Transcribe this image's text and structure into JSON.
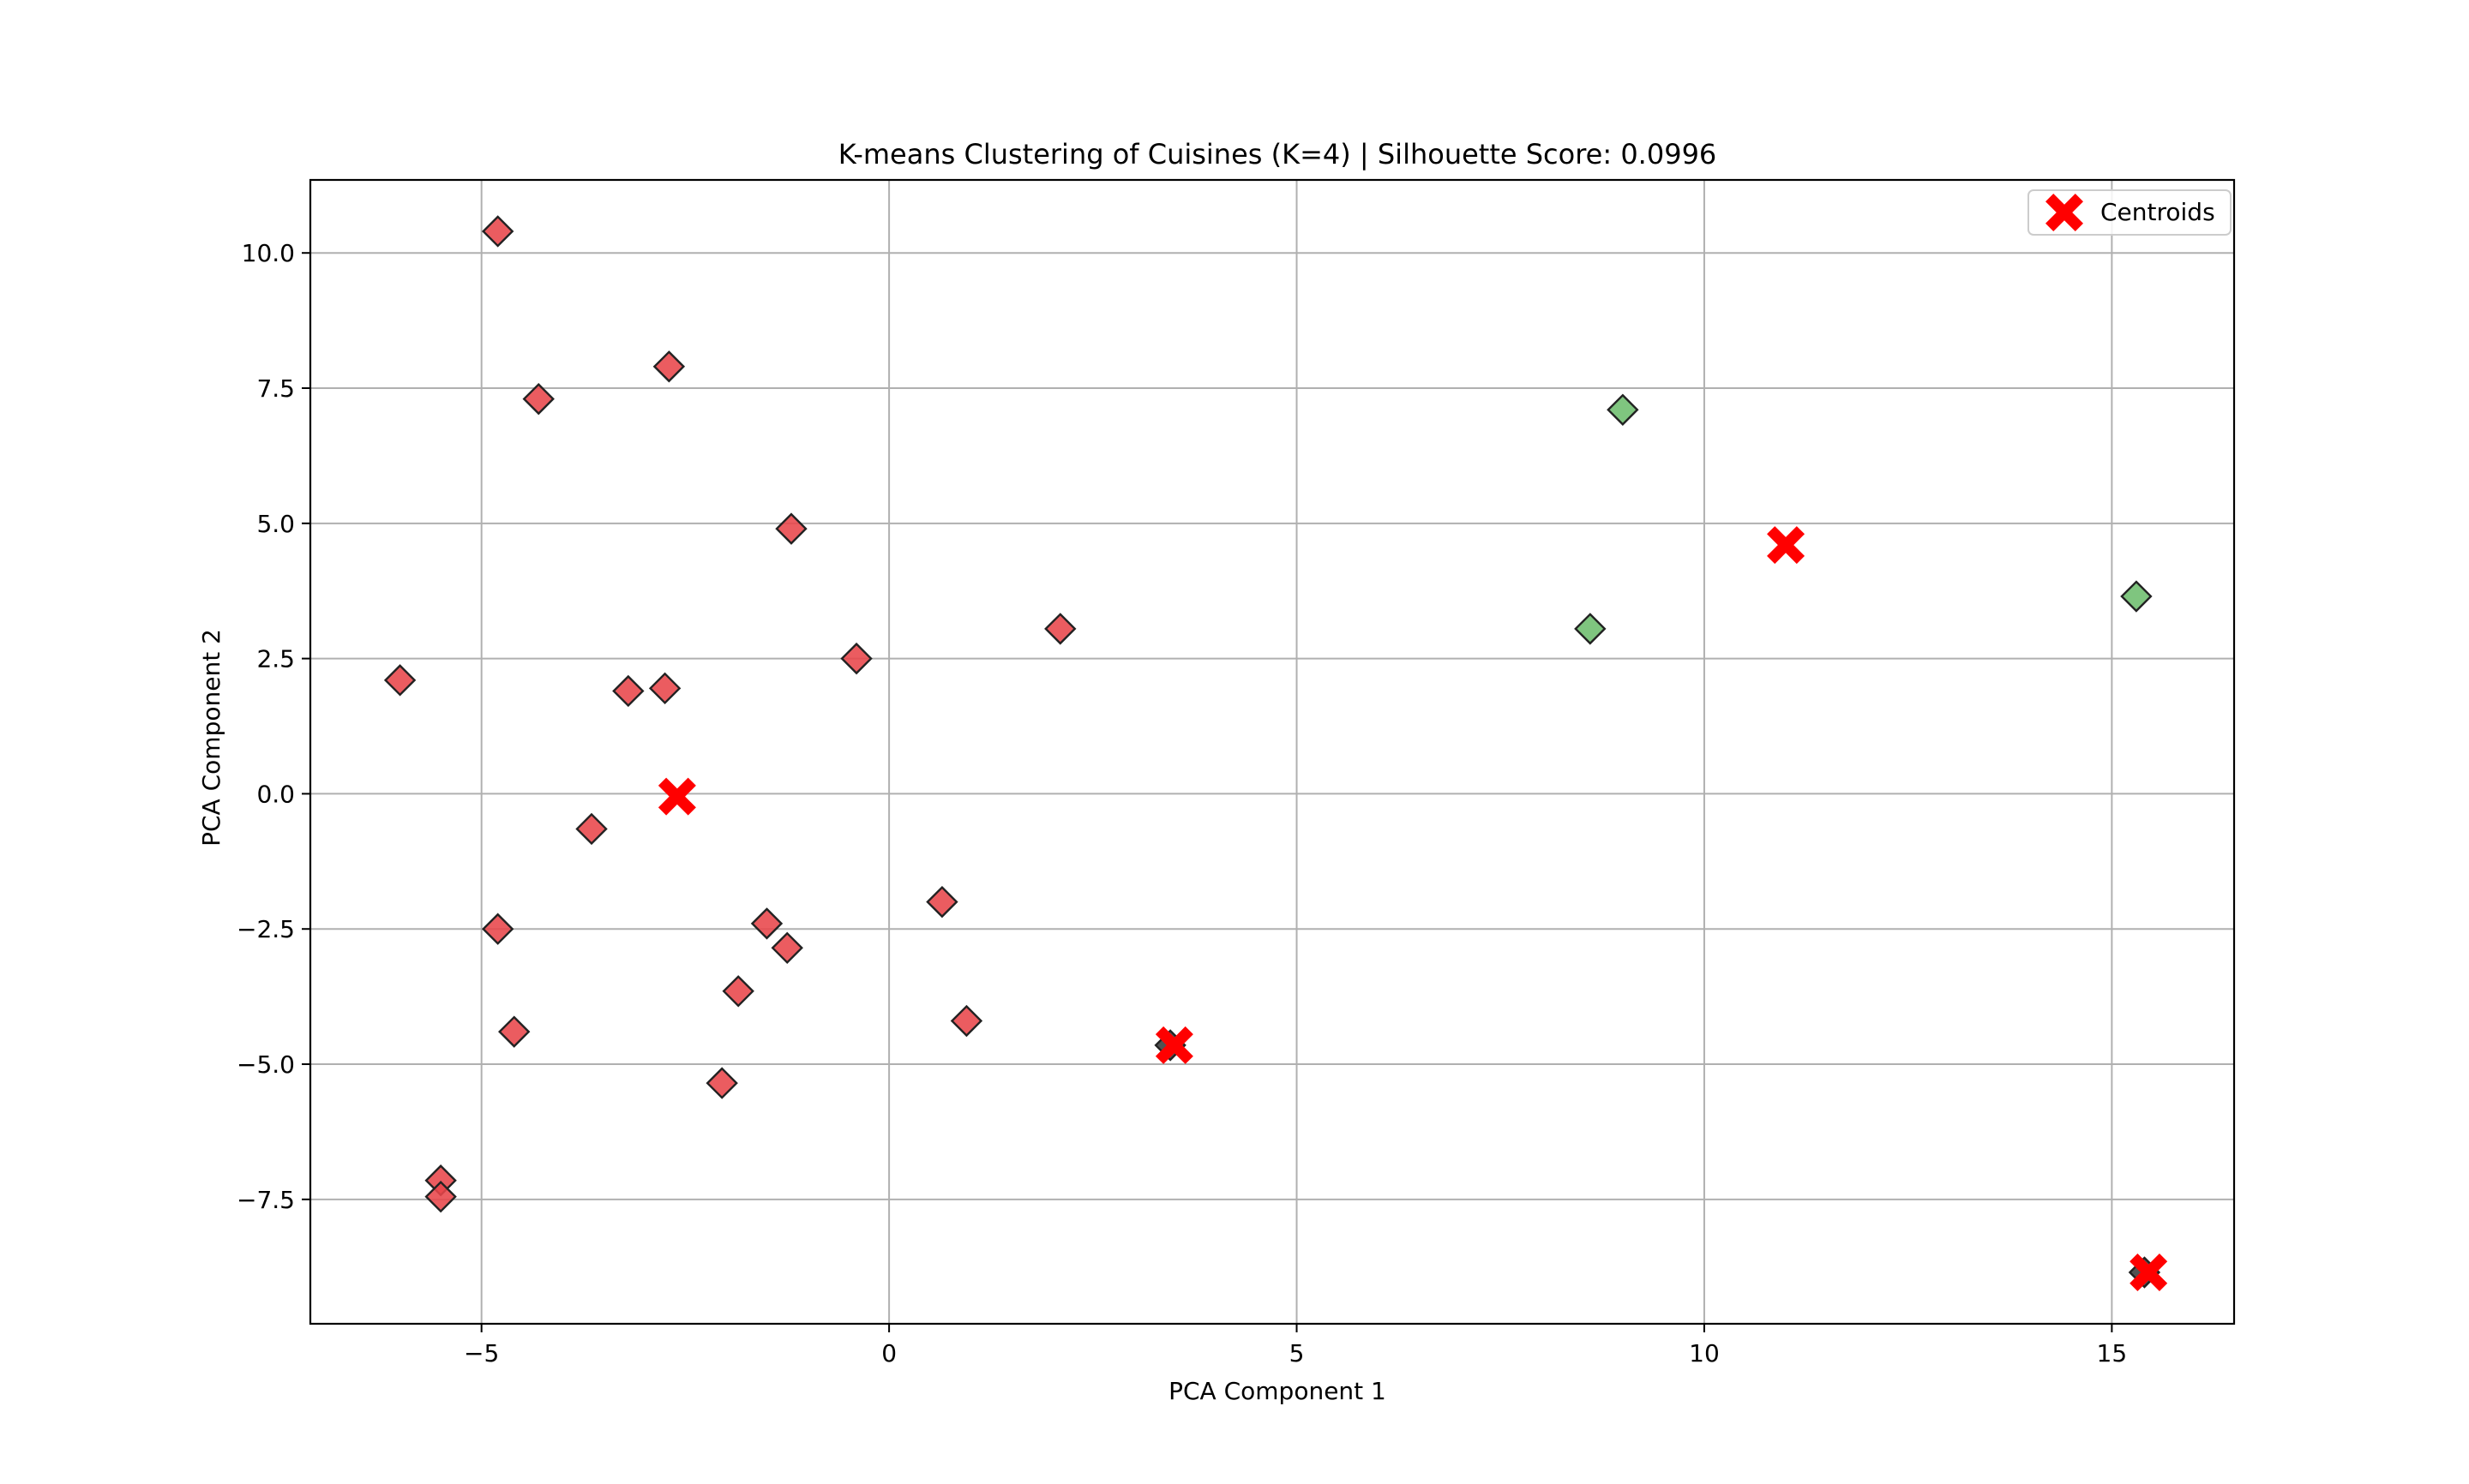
{
  "chart_data": {
    "type": "scatter",
    "title": "K-means Clustering of Cuisines (K=4) | Silhouette Score: 0.0996",
    "xlabel": "PCA Component 1",
    "ylabel": "PCA Component 2",
    "xlim": [
      -7.1,
      16.5
    ],
    "ylim": [
      -9.8,
      11.35
    ],
    "xticks": [
      -5,
      0,
      5,
      10,
      15
    ],
    "xtick_labels": [
      "−5",
      "0",
      "5",
      "10",
      "15"
    ],
    "yticks": [
      -7.5,
      -5.0,
      -2.5,
      0.0,
      2.5,
      5.0,
      7.5,
      10.0
    ],
    "ytick_labels": [
      "−7.5",
      "−5.0",
      "−2.5",
      "0.0",
      "2.5",
      "5.0",
      "7.5",
      "10.0"
    ],
    "grid": true,
    "legend": {
      "position": "top-right",
      "entries": [
        "Centroids"
      ]
    },
    "marker": "diamond",
    "clusters": [
      {
        "color": "#e8454a",
        "points": [
          [
            -4.8,
            10.4
          ],
          [
            -2.7,
            7.9
          ],
          [
            -4.3,
            7.3
          ],
          [
            -1.2,
            4.9
          ],
          [
            -0.4,
            2.5
          ],
          [
            2.1,
            3.05
          ],
          [
            -6.0,
            2.1
          ],
          [
            -3.2,
            1.9
          ],
          [
            -2.75,
            1.95
          ],
          [
            -3.65,
            -0.65
          ],
          [
            -4.8,
            -2.5
          ],
          [
            -1.5,
            -2.4
          ],
          [
            -1.25,
            -2.85
          ],
          [
            0.65,
            -2.0
          ],
          [
            -1.85,
            -3.65
          ],
          [
            0.95,
            -4.2
          ],
          [
            -4.6,
            -4.4
          ],
          [
            -2.05,
            -5.35
          ],
          [
            -5.5,
            -7.15
          ],
          [
            -5.5,
            -7.45
          ]
        ]
      },
      {
        "color": "#6dbd6d",
        "points": [
          [
            9.0,
            7.1
          ],
          [
            8.6,
            3.05
          ],
          [
            15.3,
            3.65
          ]
        ]
      },
      {
        "color": "#3a3a3a",
        "points": [
          [
            3.45,
            -4.65
          ],
          [
            15.4,
            -8.85
          ]
        ]
      }
    ],
    "centroids": {
      "name": "Centroids",
      "color": "#ff0000",
      "points": [
        [
          -2.6,
          -0.05
        ],
        [
          3.5,
          -4.65
        ],
        [
          11.0,
          4.6
        ],
        [
          15.45,
          -8.85
        ]
      ]
    }
  }
}
